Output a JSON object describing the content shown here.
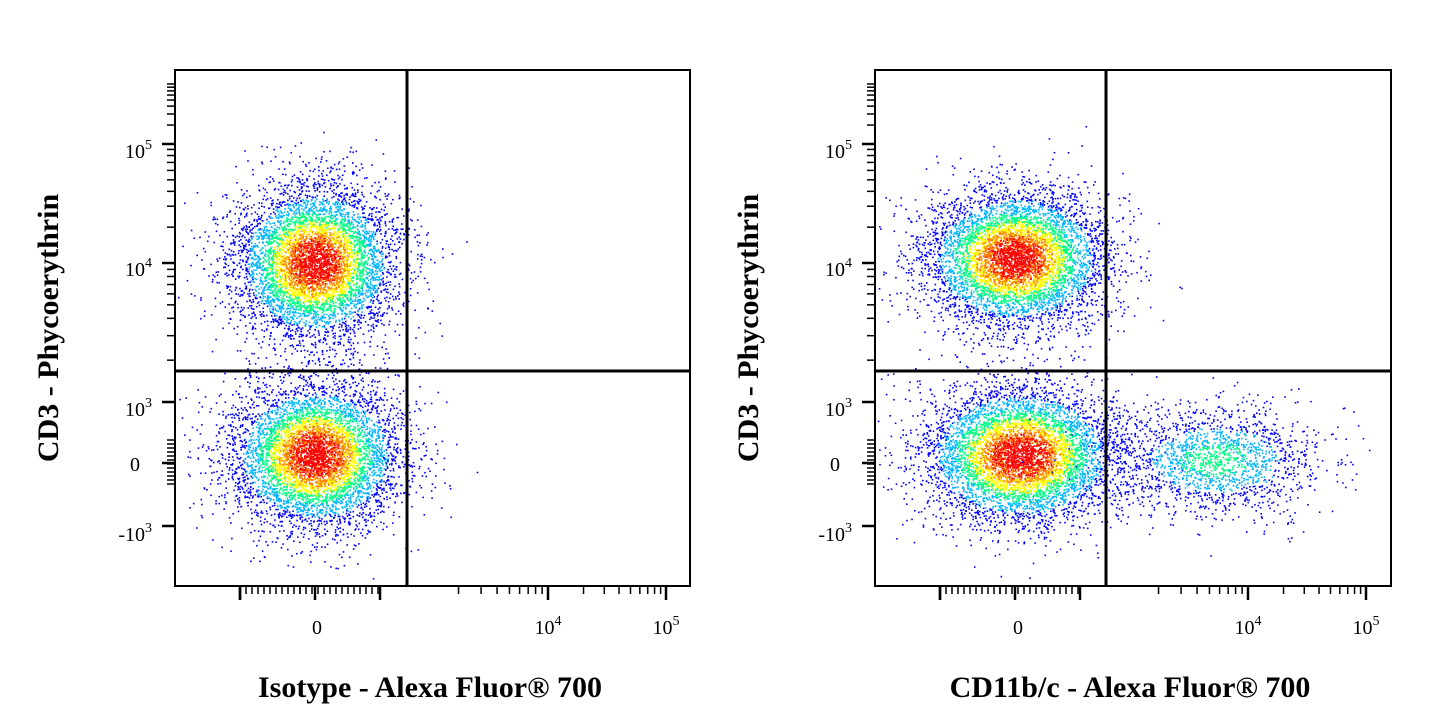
{
  "chart_data": [
    {
      "type": "scatter",
      "title": "",
      "xlabel": "Isotype - Alexa Fluor® 700",
      "ylabel": "CD3 - Phycoerythrin",
      "x_ticks": [
        "0",
        "10^4",
        "10^5"
      ],
      "y_ticks": [
        "10^5",
        "10^4",
        "10^3",
        "0",
        "-10^3"
      ],
      "colormap": [
        "#0000ff",
        "#00b4ff",
        "#00ff80",
        "#ffff00",
        "#ff8000",
        "#ff0000"
      ],
      "gate_lines": [
        "vertical",
        "horizontal"
      ],
      "populations": [
        {
          "name": "CD3+ T cells",
          "x_center": 0,
          "y_center": 10000,
          "density": "high"
        },
        {
          "name": "CD3- cells",
          "x_center": 0,
          "y_center": 0,
          "density": "high"
        }
      ]
    },
    {
      "type": "scatter",
      "title": "",
      "xlabel": "CD11b/c - Alexa Fluor® 700",
      "ylabel": "CD3 - Phycoerythrin",
      "x_ticks": [
        "0",
        "10^4",
        "10^5"
      ],
      "y_ticks": [
        "10^5",
        "10^4",
        "10^3",
        "0",
        "-10^3"
      ],
      "colormap": [
        "#0000ff",
        "#00b4ff",
        "#00ff80",
        "#ffff00",
        "#ff8000",
        "#ff0000"
      ],
      "gate_lines": [
        "vertical",
        "horizontal"
      ],
      "populations": [
        {
          "name": "CD3+ T cells",
          "x_center": 0,
          "y_center": 10000,
          "density": "high"
        },
        {
          "name": "CD3- CD11b/c- cells",
          "x_center": 0,
          "y_center": 0,
          "density": "high"
        },
        {
          "name": "CD11b/c+ cells",
          "x_center": 5000,
          "y_center": 0,
          "density": "low"
        }
      ]
    }
  ]
}
